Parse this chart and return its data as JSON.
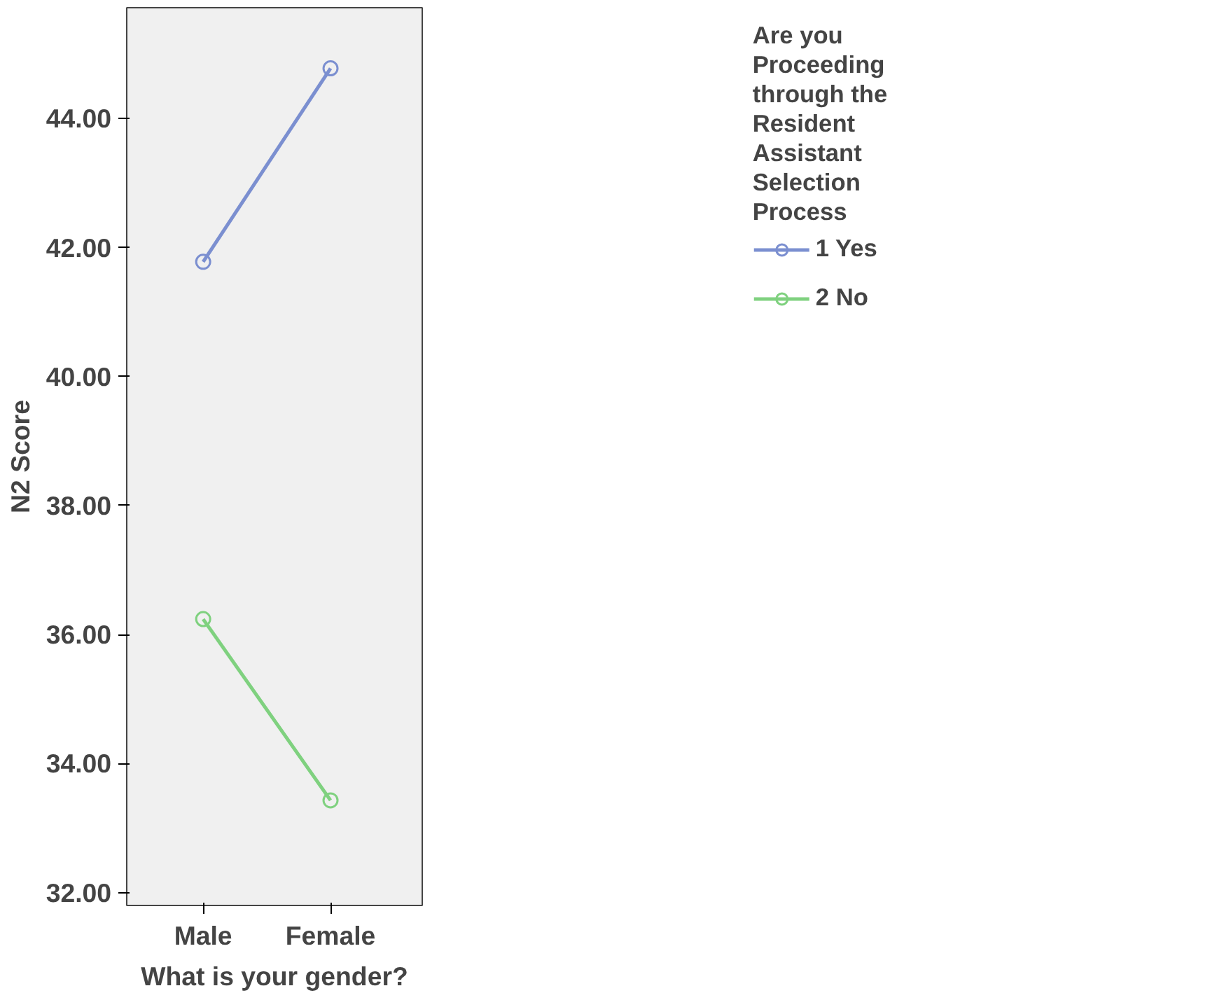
{
  "chart_data": {
    "type": "line",
    "xlabel": "What is your gender?",
    "ylabel": "N2 Score",
    "legend_title": "Are you Proceeding through the Resident Assistant Selection Process",
    "categories": [
      "Male",
      "Female"
    ],
    "series": [
      {
        "name": "1 Yes",
        "color": "#7b8fd0",
        "values": [
          41.78,
          44.78
        ]
      },
      {
        "name": "2 No",
        "color": "#7fd17f",
        "values": [
          36.24,
          33.43
        ]
      }
    ],
    "ylim": [
      31.8,
      45.72
    ],
    "yticks": [
      {
        "value": 32,
        "label": "32.00"
      },
      {
        "value": 34,
        "label": "34.00"
      },
      {
        "value": 36,
        "label": "36.00"
      },
      {
        "value": 38,
        "label": "38.00"
      },
      {
        "value": 40,
        "label": "40.00"
      },
      {
        "value": 42,
        "label": "42.00"
      },
      {
        "value": 44,
        "label": "44.00"
      }
    ],
    "marker": "circle",
    "legend": "top right",
    "grid": false
  }
}
